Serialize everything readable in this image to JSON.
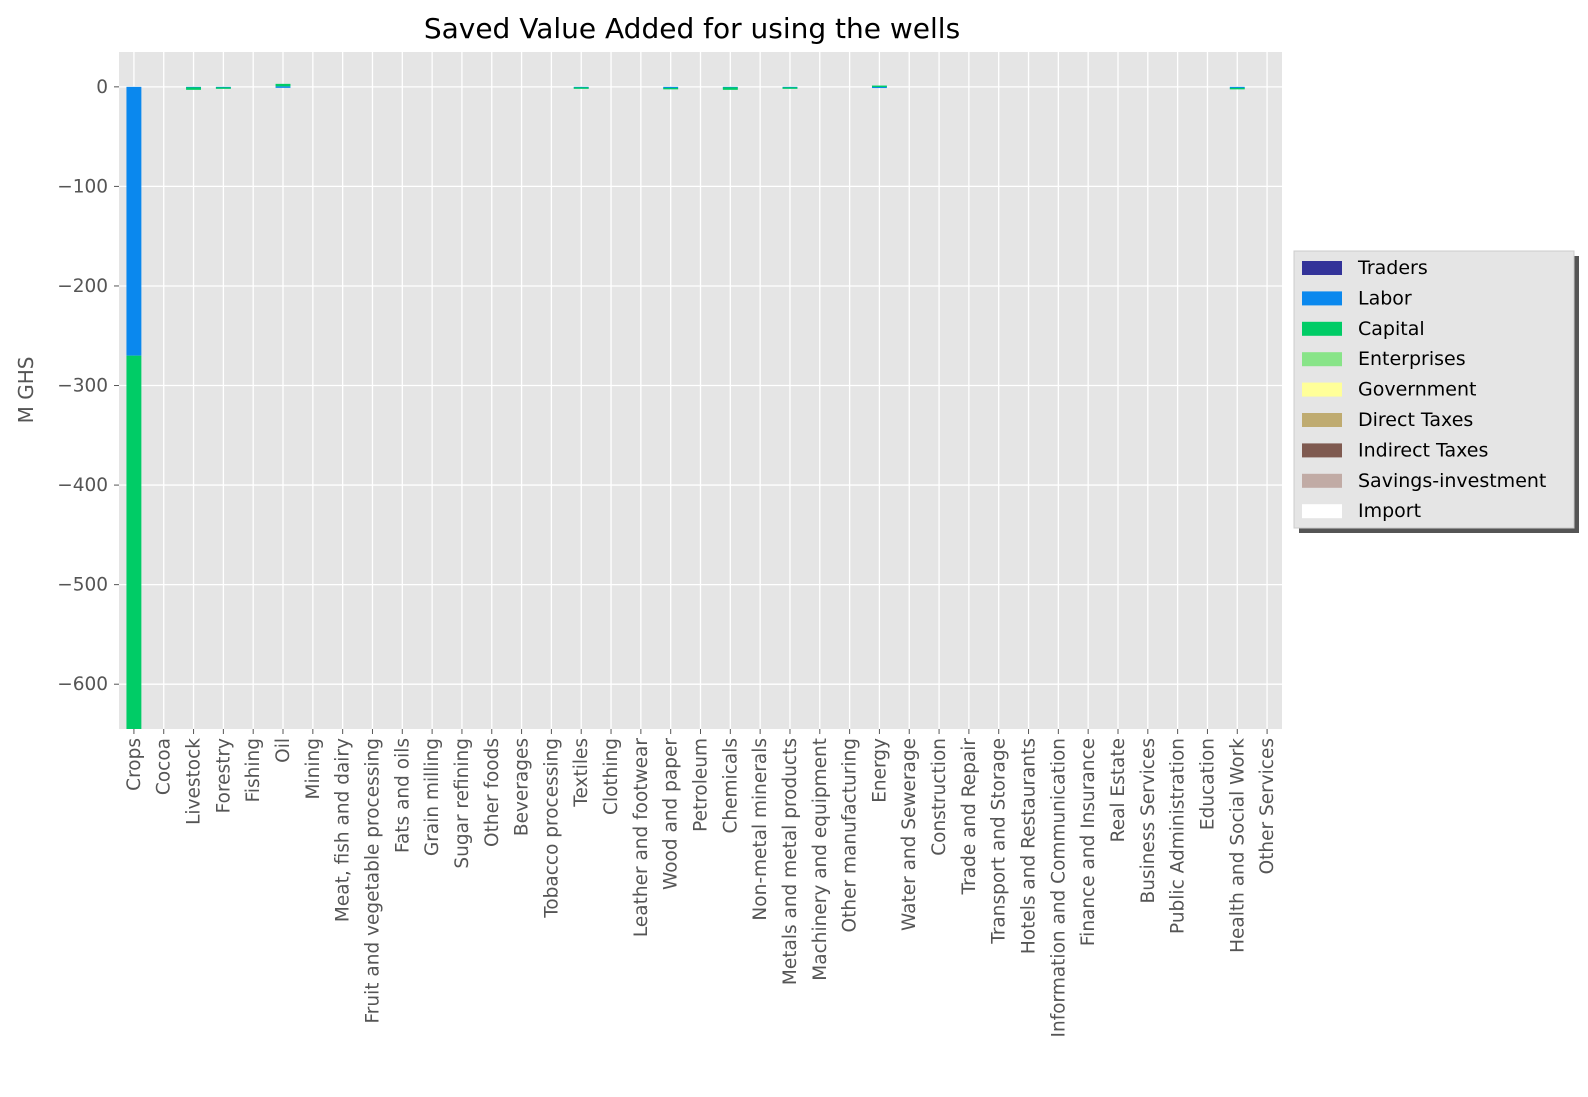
{
  "chart_data": {
    "type": "bar",
    "stacked": true,
    "title": "Saved Value Added for using the wells",
    "xlabel": "",
    "ylabel": "M GHS",
    "ylim": [
      -645,
      35
    ],
    "yticks": [
      0,
      -100,
      -200,
      -300,
      -400,
      -500,
      -600
    ],
    "ytick_labels": [
      "0",
      "−100",
      "−200",
      "−300",
      "−400",
      "−500",
      "−600"
    ],
    "grid": true,
    "legend_position": "right",
    "categories": [
      "Crops",
      "Cocoa",
      "Livestock",
      "Forestry",
      "Fishing",
      "Oil",
      "Mining",
      "Meat, fish and dairy",
      "Fruit and vegetable processing",
      "Fats and oils",
      "Grain milling",
      "Sugar refining",
      "Other foods",
      "Beverages",
      "Tobacco processing",
      "Textiles",
      "Clothing",
      "Leather and footwear",
      "Wood and paper",
      "Petroleum",
      "Chemicals",
      "Non-metal minerals",
      "Metals and metal products",
      "Machinery and equipment",
      "Other manufacturing",
      "Energy",
      "Water and Sewerage",
      "Construction",
      "Trade and Repair",
      "Transport and Storage",
      "Hotels and Restaurants",
      "Information and Communication",
      "Finance and Insurance",
      "Real Estate",
      "Business Services",
      "Public Administration",
      "Education",
      "Health and Social Work",
      "Other Services"
    ],
    "series": [
      {
        "name": "Traders",
        "color": "#333399",
        "values": [
          0,
          0,
          0,
          0,
          0,
          0,
          0,
          0,
          0,
          0,
          0,
          0,
          0,
          0,
          0,
          0,
          0,
          0,
          0,
          0,
          0,
          0,
          0,
          0,
          0,
          0,
          0,
          0,
          0,
          0,
          0,
          0,
          0,
          0,
          0,
          0,
          0,
          0,
          0
        ]
      },
      {
        "name": "Labor",
        "color": "#0a88ee",
        "values": [
          -270,
          0,
          -0.5,
          -0.5,
          0,
          0.5,
          0,
          0,
          0,
          0,
          0,
          0,
          0,
          0,
          0,
          -0.5,
          0,
          0,
          -1,
          0,
          -0.5,
          0,
          -0.5,
          0,
          0,
          0.3,
          0,
          0,
          0,
          0,
          0,
          0,
          0,
          0,
          0,
          0,
          0,
          -1,
          0
        ]
      },
      {
        "name": "Capital",
        "color": "#00cc66",
        "values": [
          -375,
          0,
          -2.5,
          -1.5,
          0,
          2.5,
          0,
          0,
          0,
          0,
          0,
          0,
          0,
          0,
          0,
          -1.5,
          0,
          0,
          -0.5,
          0,
          -2.5,
          0,
          -0.5,
          0,
          0,
          1,
          0,
          0,
          0,
          0,
          0,
          0,
          0,
          0,
          0,
          0,
          0,
          -0.5,
          0
        ]
      },
      {
        "name": "Enterprises",
        "color": "#88e488",
        "values": [
          0,
          0,
          0,
          0,
          0,
          0,
          0,
          0,
          0,
          0,
          0,
          0,
          0,
          0,
          0,
          0,
          0,
          0,
          0,
          0,
          0,
          0,
          0,
          0,
          0,
          0,
          0,
          0,
          0,
          0,
          0,
          0,
          0,
          0,
          0,
          0,
          0,
          0,
          0
        ]
      },
      {
        "name": "Government",
        "color": "#ffff99",
        "values": [
          0,
          0,
          0,
          0,
          0,
          0,
          0,
          0,
          0,
          0,
          0,
          0,
          0,
          0,
          0,
          0,
          0,
          0,
          0,
          0,
          0,
          0,
          0,
          0,
          0,
          0,
          0,
          0,
          0,
          0,
          0,
          0,
          0,
          0,
          0,
          0,
          0,
          0,
          0
        ]
      },
      {
        "name": "Direct Taxes",
        "color": "#bfab70",
        "values": [
          0,
          0,
          0,
          0,
          0,
          0,
          0,
          0,
          0,
          0,
          0,
          0,
          0,
          0,
          0,
          0,
          0,
          0,
          0,
          0,
          0,
          0,
          0,
          0,
          0,
          0,
          0,
          0,
          0,
          0,
          0,
          0,
          0,
          0,
          0,
          0,
          0,
          0,
          0
        ]
      },
      {
        "name": "Indirect Taxes",
        "color": "#7f5a50",
        "values": [
          0,
          0,
          0,
          0,
          0,
          0,
          0,
          0,
          0,
          0,
          0,
          0,
          0,
          0,
          0,
          0,
          0,
          0,
          0,
          0,
          0,
          0,
          0,
          0,
          0,
          0,
          0,
          0,
          0,
          0,
          0,
          0,
          0,
          0,
          0,
          0,
          0,
          0,
          0
        ]
      },
      {
        "name": "Savings-investment",
        "color": "#c1aba5",
        "values": [
          0,
          0,
          0,
          0,
          0,
          0,
          0,
          0,
          0,
          0,
          0,
          0,
          0,
          0,
          0,
          0,
          0,
          0,
          0,
          0,
          0,
          0,
          0,
          0,
          0,
          0,
          0,
          0,
          0,
          0,
          0,
          0,
          0,
          0,
          0,
          0,
          0,
          0,
          0
        ]
      },
      {
        "name": "Import",
        "color": "#ffffff",
        "values": [
          0,
          0,
          0,
          0,
          0,
          0,
          0,
          0,
          0,
          0,
          0,
          0,
          0,
          0,
          0,
          0,
          0,
          0,
          0,
          0,
          0,
          0,
          0,
          0,
          0,
          0,
          0,
          0,
          0,
          0,
          0,
          0,
          0,
          0,
          0,
          0,
          0,
          0,
          0
        ]
      }
    ]
  }
}
